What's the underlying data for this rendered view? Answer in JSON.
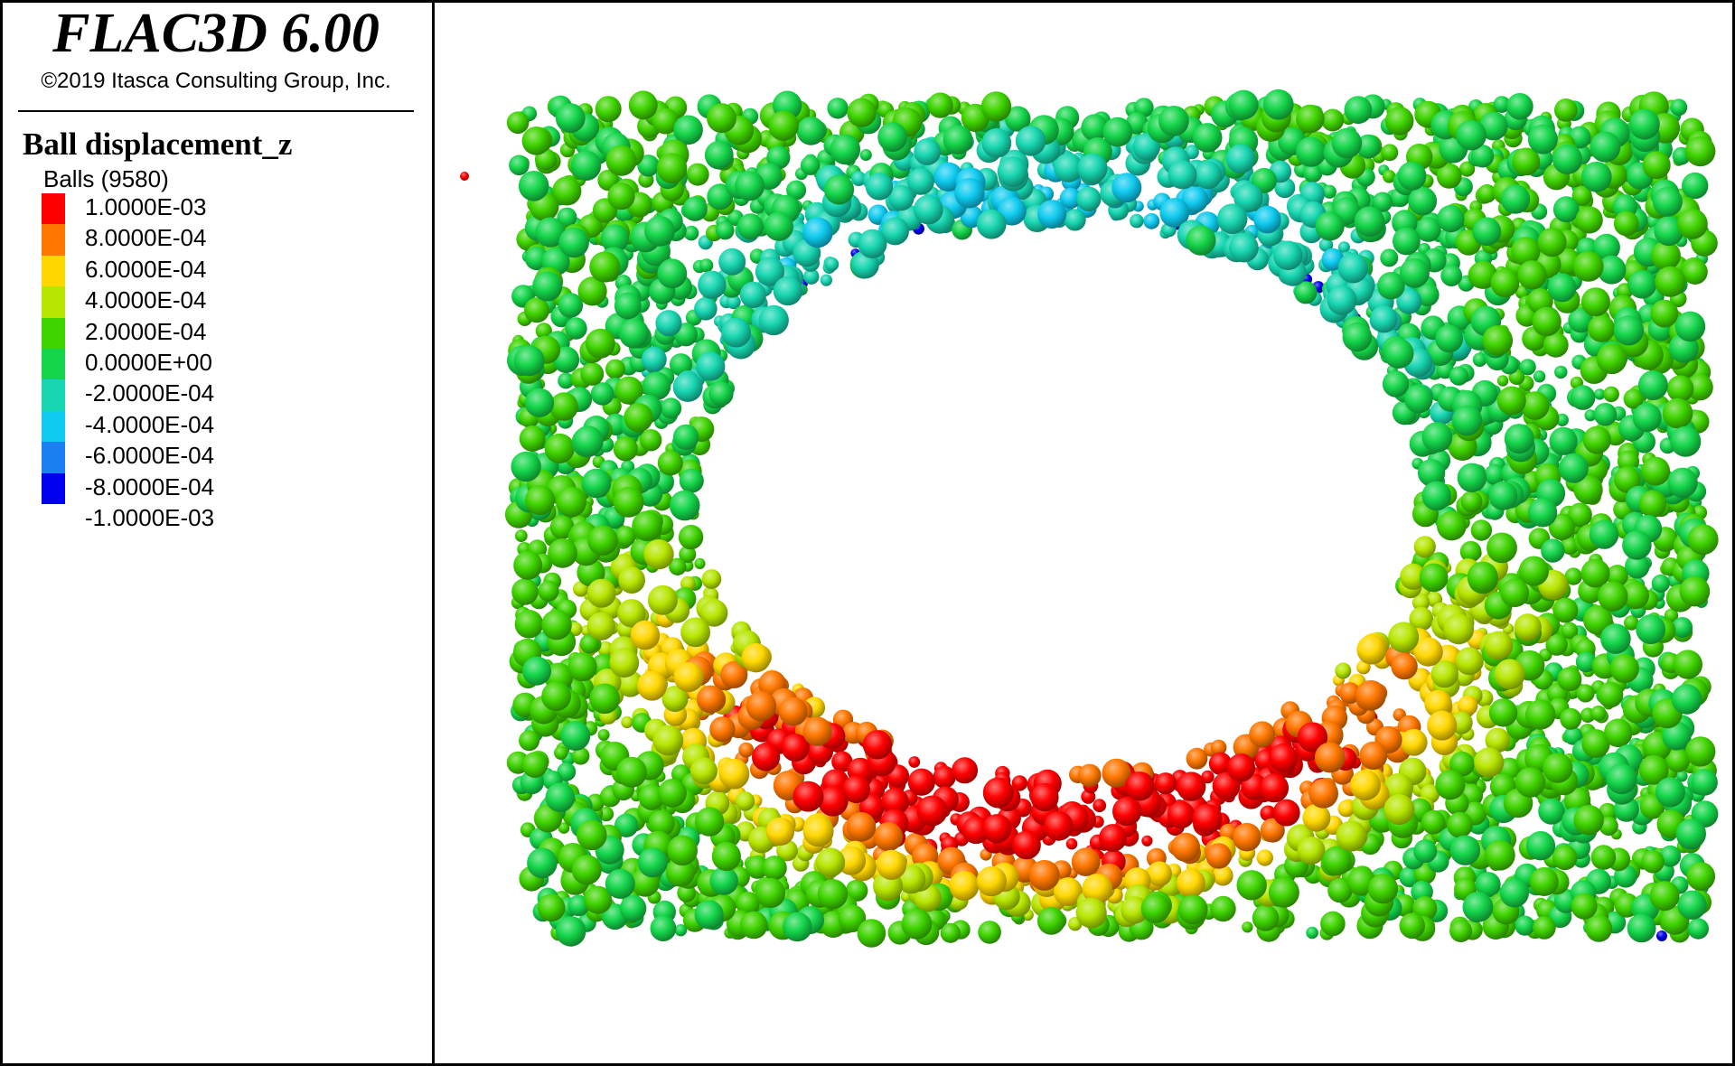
{
  "app": {
    "title": "FLAC3D 6.00",
    "copyright": "©2019 Itasca Consulting Group, Inc."
  },
  "legend": {
    "title": "Ball displacement_z",
    "group": "Balls (9580)",
    "scale": [
      {
        "label": "1.0000E-03",
        "color": "#ff0000"
      },
      {
        "label": "8.0000E-04",
        "color": "#ff7700"
      },
      {
        "label": "6.0000E-04",
        "color": "#ffd700"
      },
      {
        "label": "4.0000E-04",
        "color": "#b7e600"
      },
      {
        "label": "2.0000E-04",
        "color": "#3fd400"
      },
      {
        "label": "0.0000E+00",
        "color": "#15d64a"
      },
      {
        "label": "-2.0000E-04",
        "color": "#17d6b0"
      },
      {
        "label": "-4.0000E-04",
        "color": "#0fcbef"
      },
      {
        "label": "-6.0000E-04",
        "color": "#1a7ff0"
      },
      {
        "label": "-8.0000E-04",
        "color": "#0000ee"
      },
      {
        "label": "-1.0000E-03",
        "color": ""
      }
    ]
  }
}
